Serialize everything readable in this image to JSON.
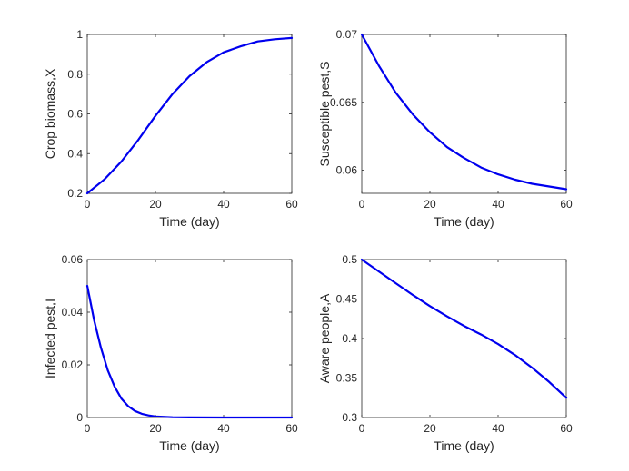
{
  "line_color": "#0000ee",
  "chart_data": [
    {
      "type": "line",
      "xlabel": "Time (day)",
      "ylabel": "Crop biomass,X",
      "xlim": [
        0,
        60
      ],
      "ylim": [
        0.2,
        1
      ],
      "xticks": [
        0,
        20,
        40,
        60
      ],
      "xtick_labels": [
        "0",
        "20",
        "40",
        "60"
      ],
      "yticks": [
        0.2,
        0.4,
        0.6,
        0.8,
        1
      ],
      "ytick_labels": [
        "0.2",
        "0.4",
        "0.6",
        "0.8",
        "1"
      ],
      "series": [
        {
          "name": "X",
          "x": [
            0,
            5,
            10,
            15,
            20,
            25,
            30,
            35,
            40,
            45,
            50,
            55,
            60
          ],
          "y": [
            0.2,
            0.27,
            0.36,
            0.47,
            0.59,
            0.7,
            0.79,
            0.86,
            0.91,
            0.94,
            0.965,
            0.976,
            0.982
          ]
        }
      ]
    },
    {
      "type": "line",
      "xlabel": "Time (day)",
      "ylabel": "Susceptible pest,S",
      "xlim": [
        0,
        60
      ],
      "ylim": [
        0.0583,
        0.07
      ],
      "xticks": [
        0,
        20,
        40,
        60
      ],
      "xtick_labels": [
        "0",
        "20",
        "40",
        "60"
      ],
      "yticks": [
        0.06,
        0.065,
        0.07
      ],
      "ytick_labels": [
        "0.06",
        "0.065",
        "0.07"
      ],
      "series": [
        {
          "name": "S",
          "x": [
            0,
            5,
            10,
            15,
            20,
            25,
            30,
            35,
            40,
            45,
            50,
            55,
            60
          ],
          "y": [
            0.07,
            0.0677,
            0.0657,
            0.0641,
            0.0628,
            0.0617,
            0.0609,
            0.0602,
            0.0597,
            0.0593,
            0.059,
            0.0588,
            0.0586
          ]
        }
      ]
    },
    {
      "type": "line",
      "xlabel": "Time (day)",
      "ylabel": "Infected pest,I",
      "xlim": [
        0,
        60
      ],
      "ylim": [
        0,
        0.06
      ],
      "xticks": [
        0,
        20,
        40,
        60
      ],
      "xtick_labels": [
        "0",
        "20",
        "40",
        "60"
      ],
      "yticks": [
        0,
        0.02,
        0.04,
        0.06
      ],
      "ytick_labels": [
        "0",
        "0.02",
        "0.04",
        "0.06"
      ],
      "series": [
        {
          "name": "I",
          "x": [
            0,
            2,
            4,
            6,
            8,
            10,
            12,
            14,
            16,
            18,
            20,
            25,
            30,
            40,
            50,
            60
          ],
          "y": [
            0.05,
            0.037,
            0.0265,
            0.018,
            0.0118,
            0.0072,
            0.0043,
            0.0025,
            0.0014,
            0.0008,
            0.0004,
            0.0001,
            3e-05,
            0,
            0,
            0
          ]
        }
      ]
    },
    {
      "type": "line",
      "xlabel": "Time (day)",
      "ylabel": "Aware people,A",
      "xlim": [
        0,
        60
      ],
      "ylim": [
        0.3,
        0.5
      ],
      "xticks": [
        0,
        20,
        40,
        60
      ],
      "xtick_labels": [
        "0",
        "20",
        "40",
        "60"
      ],
      "yticks": [
        0.3,
        0.35,
        0.4,
        0.45,
        0.5
      ],
      "ytick_labels": [
        "0.3",
        "0.35",
        "0.4",
        "0.45",
        "0.5"
      ],
      "series": [
        {
          "name": "A",
          "x": [
            0,
            5,
            10,
            15,
            20,
            25,
            30,
            35,
            40,
            45,
            50,
            55,
            60
          ],
          "y": [
            0.5,
            0.485,
            0.47,
            0.455,
            0.441,
            0.428,
            0.416,
            0.405,
            0.393,
            0.379,
            0.363,
            0.345,
            0.325
          ]
        }
      ]
    }
  ]
}
